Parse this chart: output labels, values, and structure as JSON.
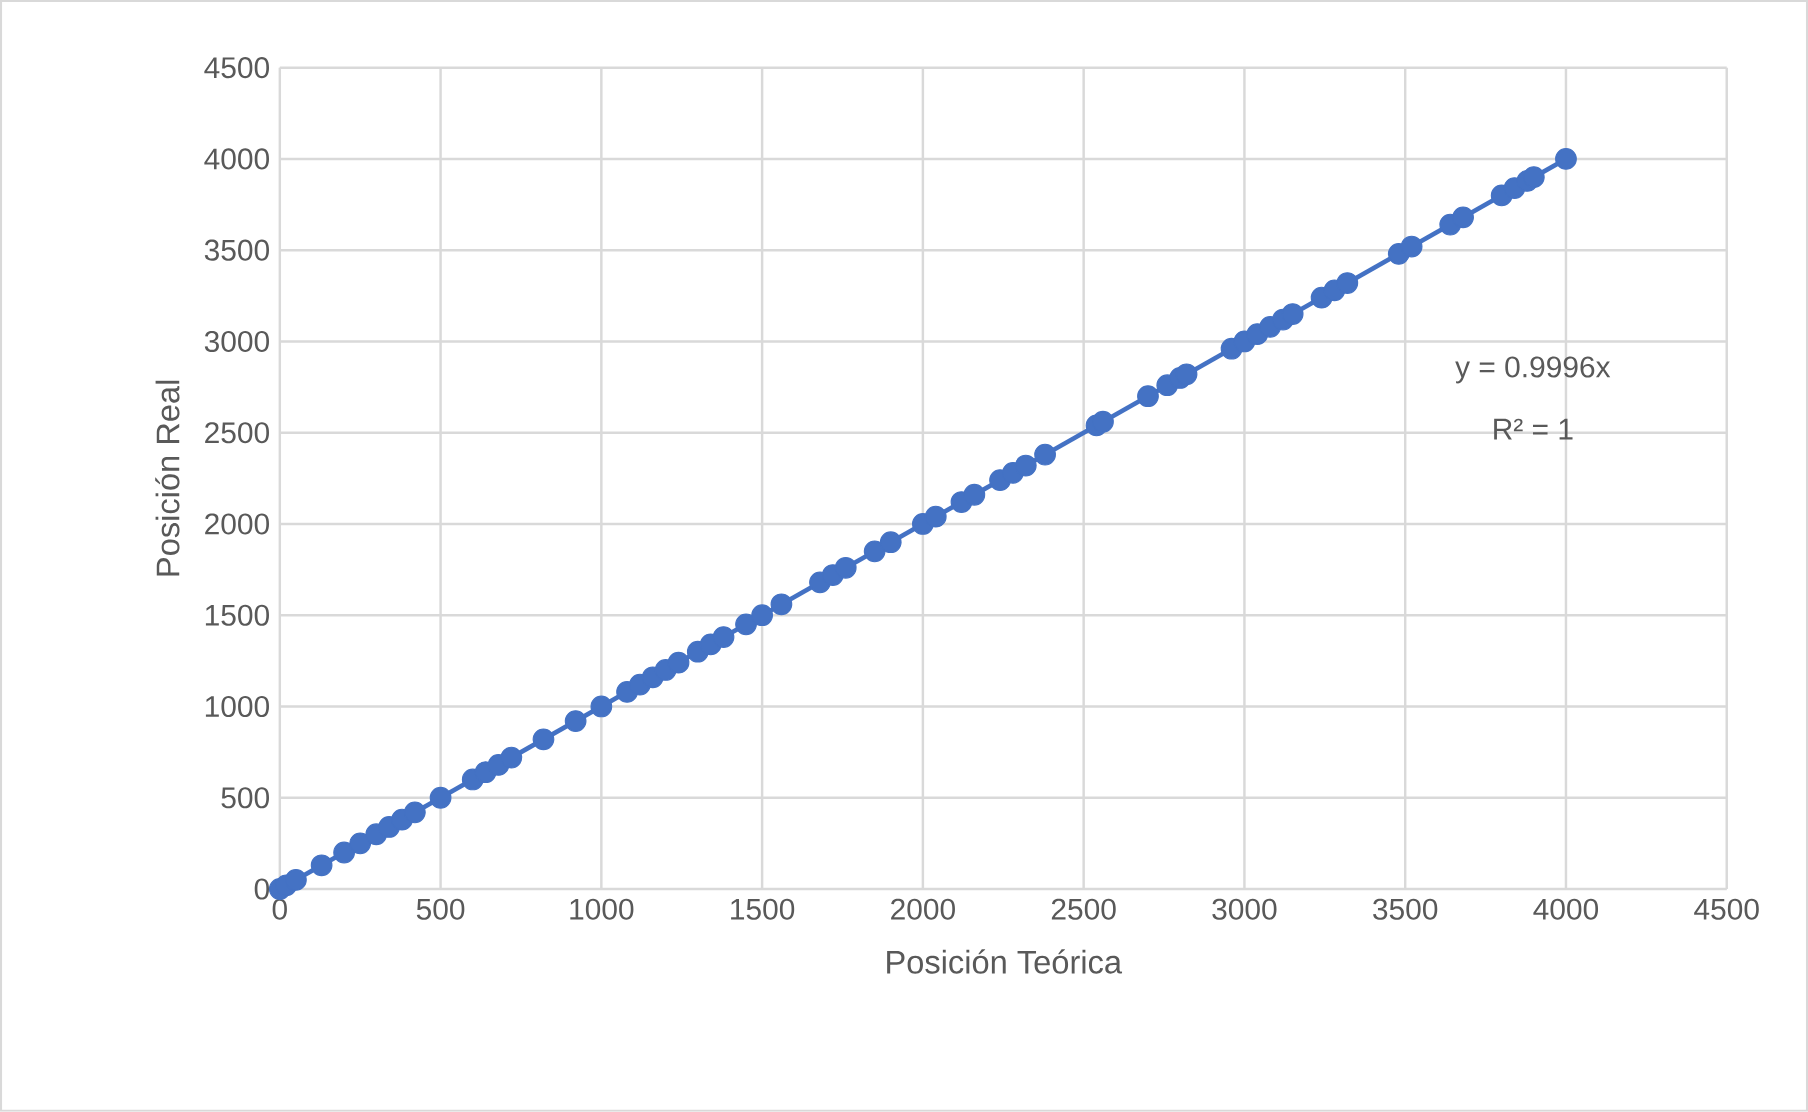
{
  "chart_data": {
    "type": "scatter",
    "xlabel": "Posición Teórica",
    "ylabel": "Posición Real",
    "xlim": [
      0,
      4500
    ],
    "ylim": [
      0,
      4500
    ],
    "xticks": [
      0,
      500,
      1000,
      1500,
      2000,
      2500,
      3000,
      3500,
      4000,
      4500
    ],
    "yticks": [
      0,
      500,
      1000,
      1500,
      2000,
      2500,
      3000,
      3500,
      4000,
      4500
    ],
    "grid": true,
    "legend": false,
    "series": [
      {
        "marker": "circle",
        "color": "#4472c4",
        "x": [
          0,
          20,
          50,
          130,
          200,
          250,
          300,
          340,
          380,
          420,
          500,
          600,
          640,
          680,
          720,
          820,
          920,
          1000,
          1080,
          1120,
          1160,
          1200,
          1240,
          1300,
          1340,
          1380,
          1450,
          1500,
          1560,
          1680,
          1720,
          1760,
          1850,
          1900,
          2000,
          2040,
          2120,
          2160,
          2240,
          2280,
          2320,
          2380,
          2540,
          2560,
          2700,
          2760,
          2800,
          2820,
          2960,
          3000,
          3040,
          3080,
          3120,
          3150,
          3240,
          3280,
          3320,
          3480,
          3520,
          3640,
          3680,
          3800,
          3840,
          3880,
          3900,
          4000
        ],
        "values": [
          0,
          20,
          50,
          130,
          200,
          250,
          300,
          340,
          380,
          420,
          500,
          600,
          640,
          680,
          720,
          820,
          920,
          1000,
          1080,
          1120,
          1160,
          1200,
          1240,
          1300,
          1340,
          1380,
          1450,
          1500,
          1560,
          1680,
          1720,
          1760,
          1850,
          1900,
          2000,
          2040,
          2120,
          2160,
          2240,
          2280,
          2320,
          2380,
          2540,
          2560,
          2700,
          2760,
          2800,
          2820,
          2960,
          3000,
          3040,
          3080,
          3120,
          3150,
          3240,
          3280,
          3320,
          3480,
          3520,
          3640,
          3680,
          3800,
          3840,
          3880,
          3900,
          4000
        ]
      },
      {
        "type": "line",
        "marker": "none",
        "color": "#4472c4",
        "x": [
          0,
          4000
        ],
        "values": [
          0,
          4000
        ]
      }
    ],
    "annotations": [
      "y = 0.9996x",
      "R² = 1"
    ]
  }
}
